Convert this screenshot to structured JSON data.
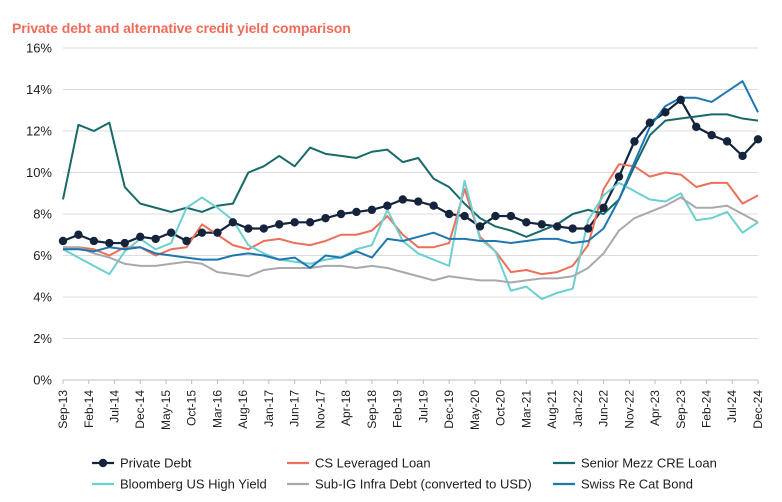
{
  "chart_data": {
    "type": "line",
    "title": "Private debt and alternative credit yield comparison",
    "xlabel": "",
    "ylabel": "",
    "ylim": [
      0,
      16
    ],
    "y_ticks": [
      0,
      2,
      4,
      6,
      8,
      10,
      12,
      14,
      16
    ],
    "y_tick_labels": [
      "0%",
      "2%",
      "4%",
      "6%",
      "8%",
      "10%",
      "12%",
      "14%",
      "16%"
    ],
    "x_range": [
      0,
      45
    ],
    "x_ticks": [
      {
        "x": 0,
        "label": "Sep-13"
      },
      {
        "x": 1.67,
        "label": "Feb-14"
      },
      {
        "x": 3.33,
        "label": "Jul-14"
      },
      {
        "x": 5.0,
        "label": "Dec-14"
      },
      {
        "x": 6.67,
        "label": "May-15"
      },
      {
        "x": 8.33,
        "label": "Oct-15"
      },
      {
        "x": 10.0,
        "label": "Mar-16"
      },
      {
        "x": 11.67,
        "label": "Aug-16"
      },
      {
        "x": 13.33,
        "label": "Jan-17"
      },
      {
        "x": 15.0,
        "label": "Jun-17"
      },
      {
        "x": 16.67,
        "label": "Nov-17"
      },
      {
        "x": 18.33,
        "label": "Apr-18"
      },
      {
        "x": 20.0,
        "label": "Sep-18"
      },
      {
        "x": 21.67,
        "label": "Feb-19"
      },
      {
        "x": 23.33,
        "label": "Jul-19"
      },
      {
        "x": 25.0,
        "label": "Dec-19"
      },
      {
        "x": 26.67,
        "label": "May-20"
      },
      {
        "x": 28.33,
        "label": "Oct-20"
      },
      {
        "x": 30.0,
        "label": "Mar-21"
      },
      {
        "x": 31.67,
        "label": "Aug-21"
      },
      {
        "x": 33.33,
        "label": "Jan-22"
      },
      {
        "x": 35.0,
        "label": "Jun-22"
      },
      {
        "x": 36.67,
        "label": "Nov-22"
      },
      {
        "x": 38.33,
        "label": "Apr-23"
      },
      {
        "x": 40.0,
        "label": "Sep-23"
      },
      {
        "x": 41.67,
        "label": "Feb-24"
      },
      {
        "x": 43.33,
        "label": "Jul-24"
      },
      {
        "x": 45.0,
        "label": "Dec-24"
      }
    ],
    "legend_position": "bottom",
    "series": [
      {
        "name": "Private Debt",
        "color": "#15243d",
        "style": "line-markers",
        "values": [
          6.7,
          7.0,
          6.7,
          6.6,
          6.6,
          6.9,
          6.8,
          7.1,
          6.7,
          7.1,
          7.1,
          7.6,
          7.3,
          7.3,
          7.5,
          7.6,
          7.6,
          7.8,
          8.0,
          8.1,
          8.2,
          8.4,
          8.7,
          8.6,
          8.4,
          8.0,
          7.9,
          7.4,
          7.9,
          7.9,
          7.6,
          7.5,
          7.4,
          7.3,
          7.3,
          8.3,
          9.8,
          11.5,
          12.4,
          12.9,
          13.5,
          12.2,
          11.8,
          11.5,
          10.8,
          11.6
        ]
      },
      {
        "name": "CS Leveraged Loan",
        "color": "#ec7059",
        "style": "line",
        "values": [
          6.3,
          6.4,
          6.3,
          6.0,
          6.4,
          6.4,
          6.0,
          6.3,
          6.4,
          7.5,
          7.0,
          6.5,
          6.3,
          6.7,
          6.8,
          6.6,
          6.5,
          6.7,
          7.0,
          7.0,
          7.2,
          7.9,
          7.0,
          6.4,
          6.4,
          6.6,
          9.2,
          6.9,
          6.2,
          5.2,
          5.3,
          5.1,
          5.2,
          5.5,
          6.5,
          9.2,
          10.4,
          10.3,
          9.8,
          10.0,
          9.9,
          9.3,
          9.5,
          9.5,
          8.5,
          8.9
        ]
      },
      {
        "name": "Senior Mezz CRE Loan",
        "color": "#186a6a",
        "style": "line",
        "values": [
          8.7,
          12.3,
          12.0,
          12.4,
          9.3,
          8.5,
          8.3,
          8.1,
          8.3,
          8.1,
          8.4,
          8.5,
          10.0,
          10.3,
          10.8,
          10.3,
          11.2,
          10.9,
          10.8,
          10.7,
          11.0,
          11.1,
          10.5,
          10.7,
          9.7,
          9.3,
          8.5,
          7.8,
          7.4,
          7.2,
          6.9,
          7.2,
          7.5,
          8.0,
          8.2,
          8.0,
          8.7,
          10.3,
          11.8,
          12.5,
          12.6,
          12.7,
          12.8,
          12.8,
          12.6,
          12.5
        ]
      },
      {
        "name": "Bloomberg US High Yield",
        "color": "#6ccfd0",
        "style": "line",
        "values": [
          6.3,
          5.9,
          5.5,
          5.1,
          6.2,
          6.8,
          6.3,
          6.6,
          8.3,
          8.8,
          8.3,
          7.7,
          6.5,
          6.1,
          5.8,
          5.7,
          5.6,
          5.8,
          5.9,
          6.3,
          6.5,
          8.2,
          6.7,
          6.1,
          5.8,
          5.5,
          9.6,
          6.8,
          6.2,
          4.3,
          4.5,
          3.9,
          4.2,
          4.4,
          7.7,
          8.9,
          9.5,
          9.1,
          8.7,
          8.6,
          9.0,
          7.7,
          7.8,
          8.1,
          7.1,
          7.6
        ]
      },
      {
        "name": "Sub-IG Infra Debt (converted to USD)",
        "color": "#a9a9ad",
        "style": "line",
        "values": [
          6.4,
          6.4,
          6.1,
          5.9,
          5.6,
          5.5,
          5.5,
          5.6,
          5.7,
          5.6,
          5.2,
          5.1,
          5.0,
          5.3,
          5.4,
          5.4,
          5.4,
          5.5,
          5.5,
          5.4,
          5.5,
          5.4,
          5.2,
          5.0,
          4.8,
          5.0,
          4.9,
          4.8,
          4.8,
          4.7,
          4.8,
          4.9,
          4.9,
          5.0,
          5.4,
          6.1,
          7.2,
          7.8,
          8.1,
          8.4,
          8.8,
          8.3,
          8.3,
          8.4,
          8.0,
          7.6
        ]
      },
      {
        "name": "Swiss Re Cat Bond",
        "color": "#1f77b0",
        "style": "line",
        "values": [
          6.3,
          6.3,
          6.2,
          6.4,
          6.3,
          6.4,
          6.1,
          6.0,
          5.9,
          5.8,
          5.8,
          6.0,
          6.1,
          6.0,
          5.8,
          5.9,
          5.4,
          6.0,
          5.9,
          6.2,
          5.9,
          6.8,
          6.7,
          6.9,
          7.1,
          6.8,
          6.8,
          6.7,
          6.7,
          6.6,
          6.7,
          6.8,
          6.8,
          6.6,
          6.7,
          7.3,
          8.7,
          10.5,
          12.2,
          13.2,
          13.6,
          13.6,
          13.4,
          13.9,
          14.4,
          12.9
        ]
      }
    ]
  }
}
